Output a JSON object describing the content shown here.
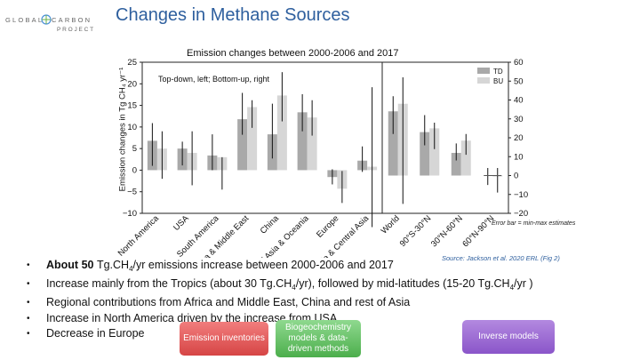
{
  "header": {
    "title": "Changes in Methane Sources",
    "logo_line1": "GLOBAL",
    "logo_line1b": "CARBON",
    "logo_line2": "PROJECT"
  },
  "chart_data": {
    "type": "bar",
    "title": "Emission changes between 2000-2006 and 2017",
    "ylabel": "Emission changes in Tg CH₄ yr⁻¹",
    "ylim_left": [
      -10,
      25
    ],
    "yticks_left": [
      "−10",
      "−5",
      "0",
      "5",
      "10",
      "15",
      "20",
      "25"
    ],
    "ylim_right": [
      -20,
      60
    ],
    "yticks_right": [
      "−20",
      "−10",
      "0",
      "10",
      "20",
      "30",
      "40",
      "50",
      "60"
    ],
    "note": "Top-down, left; Bottom-up, right",
    "legend": [
      "TD",
      "BU"
    ],
    "legend_position": "top-right",
    "colors": {
      "TD": "#a9a9a9",
      "BU": "#d6d6d6",
      "error": "#111111"
    },
    "categories": [
      "North America",
      "USA",
      "South America",
      "Africa & Middle East",
      "China",
      "Rest of Asia & Oceania",
      "Europe",
      "Russia & Central Asia",
      "World",
      "90°S-30°N",
      "30°N-60°N",
      "60°N-90°N"
    ],
    "axis_group": [
      "left",
      "left",
      "left",
      "left",
      "left",
      "left",
      "left",
      "left",
      "right",
      "right",
      "right",
      "right"
    ],
    "series": [
      {
        "name": "TD",
        "values": [
          6.8,
          5.0,
          3.4,
          11.8,
          8.3,
          13.4,
          -1.6,
          2.2,
          34,
          23,
          12,
          0
        ]
      },
      {
        "name": "BU",
        "values": [
          5.0,
          4.0,
          3.0,
          14.6,
          17.3,
          12.2,
          -4.3,
          0.8,
          38,
          25,
          18.5,
          -0.5
        ]
      }
    ],
    "error_td_min": [
      1.0,
      1.1,
      0,
      8.2,
      2.7,
      9.0,
      -3.3,
      -0.4,
      22,
      16,
      8,
      -5
    ],
    "error_td_max": [
      10.9,
      6.6,
      8.3,
      17.9,
      15.4,
      17.6,
      0.2,
      5.5,
      42,
      32,
      17,
      4
    ],
    "error_bu_min": [
      -2.0,
      -3.5,
      -4.5,
      9.8,
      11.3,
      8.0,
      -7.6,
      -13.2,
      -15,
      14,
      11,
      -9
    ],
    "error_bu_max": [
      9.0,
      9.0,
      3.0,
      16.2,
      22.7,
      16.2,
      -0.2,
      19.2,
      52,
      28,
      22,
      4
    ]
  },
  "notes": {
    "error_bar": "Error bar = min-max estimates",
    "source": "Source: Jackson et al. 2020 ERL (Fig 2)"
  },
  "bullets": [
    {
      "text_a": "About 50 ",
      "text_b": "Tg.CH",
      "sub": "4",
      "text_c": "/yr  emissions increase between 2000-2006 and 2017"
    },
    {
      "text_a": "Increase mainly from the Tropics (about 30 Tg.CH",
      "sub": "4",
      "text_b": "/yr), followed by mid-latitudes (15-20 Tg.CH",
      "sub2": "4",
      "text_c": "/yr )"
    },
    {
      "text": "Regional contributions from Africa and Middle East, China and rest of Asia"
    },
    {
      "text": "Increase in North America driven by the increase from USA"
    },
    {
      "text": "Decrease in Europe"
    }
  ],
  "buttons": {
    "emission": "Emission inventories",
    "biogeo": "Biogeochemistry models & data-driven methods",
    "inverse": "Inverse models"
  }
}
